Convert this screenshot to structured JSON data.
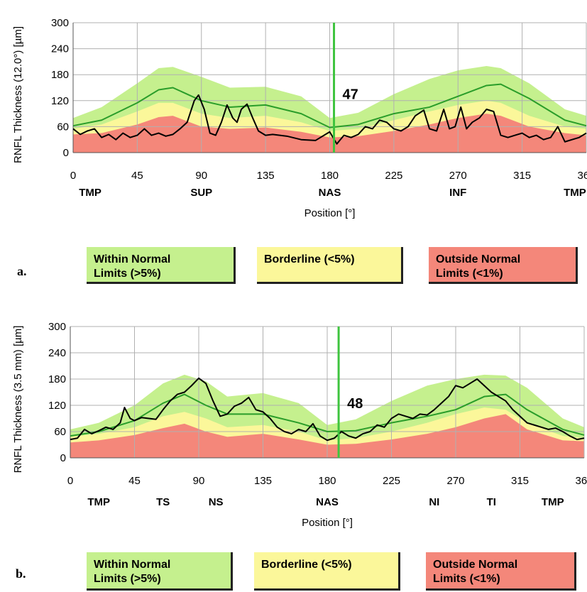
{
  "chart_data": [
    {
      "type": "line",
      "panel_label": "a.",
      "ylabel": "RNFL Thickness (12.0°) [µm]",
      "xlabel": "Position [°]",
      "xlim": [
        0,
        360
      ],
      "ylim": [
        0,
        300
      ],
      "xticks": [
        0,
        45,
        90,
        135,
        180,
        225,
        270,
        315,
        360
      ],
      "yticks": [
        0,
        60,
        120,
        180,
        240,
        300
      ],
      "sector_labels": [
        {
          "text": "TMP",
          "x": 12
        },
        {
          "text": "SUP",
          "x": 90
        },
        {
          "text": "NAS",
          "x": 180
        },
        {
          "text": "INF",
          "x": 270
        },
        {
          "text": "TMP",
          "x": 352
        }
      ],
      "marker": {
        "x": 183,
        "label": "47"
      },
      "grid": true,
      "bands": {
        "x": [
          0,
          20,
          45,
          60,
          70,
          90,
          110,
          135,
          160,
          180,
          200,
          225,
          250,
          270,
          290,
          300,
          320,
          345,
          360
        ],
        "within_normal_upper": [
          80,
          105,
          160,
          195,
          198,
          175,
          150,
          152,
          130,
          80,
          92,
          135,
          170,
          190,
          200,
          195,
          160,
          100,
          85
        ],
        "borderline_upper": [
          55,
          65,
          95,
          115,
          115,
          90,
          80,
          85,
          70,
          50,
          55,
          75,
          95,
          110,
          120,
          115,
          85,
          60,
          55
        ],
        "outside_upper": [
          42,
          45,
          65,
          82,
          85,
          60,
          55,
          58,
          48,
          35,
          38,
          50,
          65,
          80,
          90,
          85,
          60,
          45,
          40
        ]
      },
      "series": [
        {
          "name": "Normal mean",
          "color": "#2a9d2a",
          "x": [
            0,
            20,
            45,
            60,
            70,
            90,
            110,
            135,
            160,
            180,
            200,
            225,
            250,
            270,
            290,
            300,
            320,
            345,
            360
          ],
          "values": [
            62,
            75,
            115,
            145,
            150,
            120,
            105,
            110,
            90,
            58,
            65,
            90,
            105,
            130,
            155,
            158,
            125,
            75,
            62
          ]
        },
        {
          "name": "Measured",
          "color": "#000000",
          "x": [
            0,
            5,
            10,
            15,
            20,
            25,
            30,
            35,
            40,
            45,
            50,
            55,
            60,
            65,
            70,
            75,
            80,
            85,
            88,
            92,
            96,
            100,
            104,
            108,
            112,
            115,
            118,
            122,
            126,
            130,
            135,
            140,
            150,
            160,
            170,
            180,
            185,
            190,
            195,
            200,
            205,
            210,
            215,
            220,
            225,
            230,
            235,
            240,
            246,
            250,
            255,
            260,
            264,
            268,
            272,
            276,
            280,
            285,
            290,
            295,
            300,
            305,
            310,
            315,
            320,
            325,
            330,
            335,
            340,
            345,
            350,
            355,
            360
          ],
          "values": [
            55,
            42,
            50,
            55,
            35,
            42,
            30,
            45,
            35,
            40,
            55,
            40,
            45,
            38,
            42,
            55,
            70,
            120,
            133,
            100,
            45,
            40,
            70,
            110,
            80,
            70,
            100,
            112,
            80,
            50,
            40,
            42,
            38,
            30,
            28,
            48,
            20,
            40,
            35,
            42,
            60,
            55,
            75,
            70,
            55,
            50,
            60,
            85,
            98,
            55,
            50,
            100,
            55,
            60,
            105,
            55,
            70,
            80,
            100,
            95,
            40,
            35,
            40,
            45,
            35,
            40,
            30,
            35,
            60,
            25,
            30,
            35,
            45
          ]
        }
      ],
      "legend": [
        {
          "label_line1": "Within Normal",
          "label_line2": "Limits (>5%)",
          "color": "#c5f08e"
        },
        {
          "label_line1": "Borderline (<5%)",
          "label_line2": "",
          "color": "#fbf79a"
        },
        {
          "label_line1": "Outside Normal",
          "label_line2": "Limits (<1%)",
          "color": "#f4877a"
        }
      ]
    },
    {
      "type": "line",
      "panel_label": "b.",
      "ylabel": "RNFL Thickness (3.5 mm) [µm]",
      "xlabel": "Position [°]",
      "xlim": [
        0,
        360
      ],
      "ylim": [
        0,
        300
      ],
      "xticks": [
        0,
        45,
        90,
        135,
        180,
        225,
        270,
        315,
        360
      ],
      "yticks": [
        0,
        60,
        120,
        180,
        240,
        300
      ],
      "sector_labels": [
        {
          "text": "TMP",
          "x": 20
        },
        {
          "text": "TS",
          "x": 65
        },
        {
          "text": "NS",
          "x": 102
        },
        {
          "text": "NAS",
          "x": 180
        },
        {
          "text": "NI",
          "x": 255
        },
        {
          "text": "TI",
          "x": 295
        },
        {
          "text": "TMP",
          "x": 338
        }
      ],
      "marker": {
        "x": 188,
        "label": "48"
      },
      "grid": true,
      "bands": {
        "x": [
          0,
          20,
          45,
          65,
          80,
          95,
          110,
          135,
          160,
          180,
          200,
          225,
          250,
          270,
          290,
          305,
          320,
          345,
          360
        ],
        "within_normal_upper": [
          65,
          80,
          120,
          170,
          190,
          175,
          140,
          148,
          125,
          75,
          88,
          130,
          165,
          180,
          190,
          188,
          160,
          90,
          70
        ],
        "borderline_upper": [
          48,
          55,
          70,
          95,
          105,
          90,
          70,
          75,
          60,
          40,
          45,
          60,
          80,
          100,
          115,
          110,
          80,
          50,
          45
        ],
        "outside_upper": [
          35,
          40,
          52,
          68,
          78,
          60,
          48,
          55,
          42,
          30,
          32,
          42,
          55,
          70,
          90,
          100,
          65,
          40,
          38
        ]
      },
      "series": [
        {
          "name": "Normal mean",
          "color": "#2a9d2a",
          "x": [
            0,
            20,
            45,
            65,
            80,
            95,
            110,
            135,
            160,
            180,
            200,
            225,
            250,
            270,
            290,
            305,
            320,
            345,
            360
          ],
          "values": [
            50,
            60,
            85,
            125,
            145,
            120,
            100,
            100,
            80,
            60,
            62,
            80,
            95,
            110,
            140,
            145,
            110,
            65,
            52
          ]
        },
        {
          "name": "Measured",
          "color": "#000000",
          "x": [
            0,
            5,
            10,
            15,
            20,
            25,
            30,
            35,
            38,
            42,
            45,
            50,
            55,
            60,
            65,
            70,
            75,
            80,
            85,
            90,
            95,
            100,
            105,
            110,
            115,
            120,
            125,
            130,
            135,
            140,
            145,
            150,
            155,
            160,
            165,
            170,
            175,
            180,
            185,
            190,
            195,
            200,
            205,
            210,
            215,
            220,
            225,
            230,
            235,
            240,
            245,
            250,
            255,
            260,
            265,
            270,
            275,
            280,
            285,
            290,
            295,
            300,
            305,
            310,
            315,
            320,
            325,
            330,
            335,
            340,
            345,
            350,
            355,
            360
          ],
          "values": [
            42,
            45,
            65,
            55,
            62,
            70,
            65,
            80,
            115,
            90,
            85,
            92,
            90,
            88,
            110,
            130,
            145,
            150,
            165,
            182,
            170,
            130,
            95,
            100,
            118,
            125,
            138,
            110,
            105,
            90,
            70,
            60,
            55,
            65,
            60,
            78,
            50,
            40,
            45,
            60,
            50,
            45,
            55,
            60,
            75,
            70,
            90,
            100,
            95,
            90,
            100,
            98,
            110,
            125,
            140,
            165,
            160,
            170,
            180,
            165,
            150,
            140,
            130,
            110,
            95,
            80,
            75,
            70,
            65,
            68,
            60,
            50,
            42,
            45
          ]
        }
      ],
      "legend": [
        {
          "label_line1": "Within Normal",
          "label_line2": "Limits (>5%)",
          "color": "#c5f08e"
        },
        {
          "label_line1": "Borderline (<5%)",
          "label_line2": "",
          "color": "#fbf79a"
        },
        {
          "label_line1": "Outside Normal",
          "label_line2": "Limits (<1%)",
          "color": "#f4877a"
        }
      ]
    }
  ],
  "colors": {
    "within_normal": "#c5f08e",
    "borderline": "#fbf79a",
    "outside_normal": "#f4877a",
    "marker_line": "#3ec43e",
    "mean_line": "#2a9d2a",
    "measured_line": "#000000",
    "grid": "#b0b0b0"
  }
}
